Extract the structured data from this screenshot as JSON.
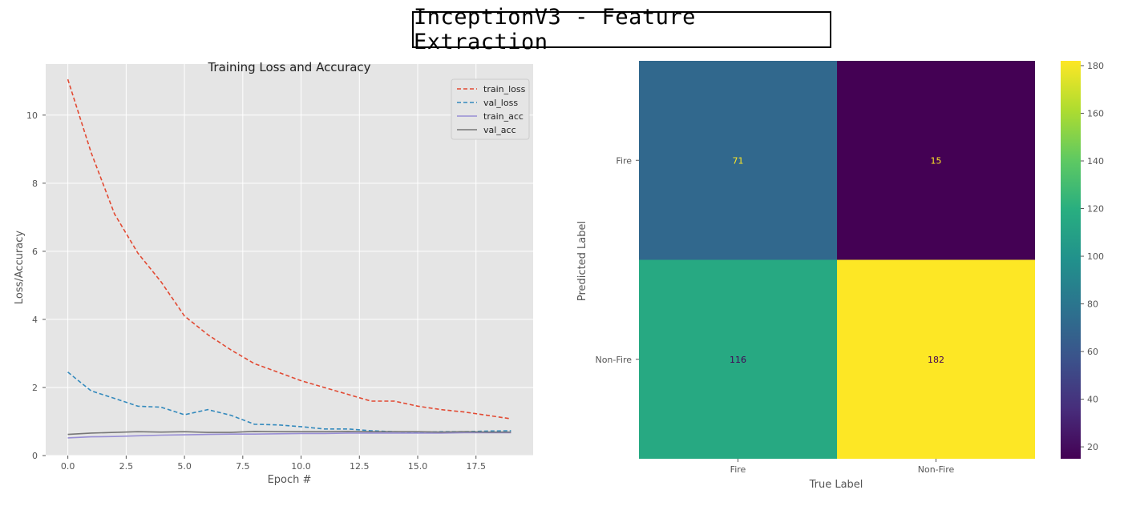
{
  "figure": {
    "title": "InceptionV3 - Feature Extraction"
  },
  "chart_data": [
    {
      "type": "line",
      "title": "Training Loss and Accuracy",
      "xlabel": "Epoch #",
      "ylabel": "Loss/Accuracy",
      "xlim": [
        -0.95,
        19.95
      ],
      "ylim": [
        0,
        11.5
      ],
      "xticks": [
        0.0,
        2.5,
        5.0,
        7.5,
        10.0,
        12.5,
        15.0,
        17.5
      ],
      "xtick_labels": [
        "0.0",
        "2.5",
        "5.0",
        "7.5",
        "10.0",
        "12.5",
        "15.0",
        "17.5"
      ],
      "yticks": [
        0,
        2,
        4,
        6,
        8,
        10
      ],
      "ytick_labels": [
        "0",
        "2",
        "4",
        "6",
        "8",
        "10"
      ],
      "grid": true,
      "legend_position": "top-right",
      "x": [
        0,
        1,
        2,
        3,
        4,
        5,
        6,
        7,
        8,
        9,
        10,
        11,
        12,
        13,
        14,
        15,
        16,
        17,
        18,
        19
      ],
      "series": [
        {
          "name": "train_loss",
          "color": "#e24a33",
          "style": "dashed",
          "values": [
            11.05,
            8.9,
            7.1,
            5.95,
            5.1,
            4.1,
            3.55,
            3.1,
            2.7,
            2.45,
            2.2,
            2.0,
            1.8,
            1.6,
            1.6,
            1.45,
            1.35,
            1.28,
            1.18,
            1.08
          ]
        },
        {
          "name": "val_loss",
          "color": "#348abd",
          "style": "dashed",
          "values": [
            2.45,
            1.9,
            1.68,
            1.45,
            1.42,
            1.2,
            1.35,
            1.18,
            0.92,
            0.9,
            0.85,
            0.78,
            0.78,
            0.73,
            0.7,
            0.68,
            0.7,
            0.7,
            0.72,
            0.73
          ]
        },
        {
          "name": "train_acc",
          "color": "#988ed5",
          "style": "solid",
          "values": [
            0.52,
            0.55,
            0.56,
            0.58,
            0.6,
            0.61,
            0.62,
            0.63,
            0.63,
            0.64,
            0.65,
            0.65,
            0.66,
            0.66,
            0.66,
            0.66,
            0.66,
            0.67,
            0.67,
            0.67
          ]
        },
        {
          "name": "val_acc",
          "color": "#777777",
          "style": "solid",
          "values": [
            0.62,
            0.66,
            0.68,
            0.7,
            0.69,
            0.7,
            0.68,
            0.68,
            0.71,
            0.7,
            0.7,
            0.7,
            0.71,
            0.7,
            0.7,
            0.7,
            0.69,
            0.7,
            0.69,
            0.69
          ]
        }
      ]
    },
    {
      "type": "heatmap",
      "xlabel": "True Label",
      "ylabel": "Predicted Label",
      "x_categories": [
        "Fire",
        "Non-Fire"
      ],
      "y_categories": [
        "Fire",
        "Non-Fire"
      ],
      "values": [
        [
          71,
          15
        ],
        [
          116,
          182
        ]
      ],
      "colormap": "viridis",
      "colorbar": {
        "range": [
          15,
          182
        ],
        "ticks": [
          20,
          40,
          60,
          80,
          100,
          120,
          140,
          160,
          180
        ],
        "tick_labels": [
          "20",
          "40",
          "60",
          "80",
          "100",
          "120",
          "140",
          "160",
          "180"
        ]
      },
      "text_colors": [
        [
          "#fde725",
          "#fde725"
        ],
        [
          "#440154",
          "#440154"
        ]
      ]
    }
  ]
}
